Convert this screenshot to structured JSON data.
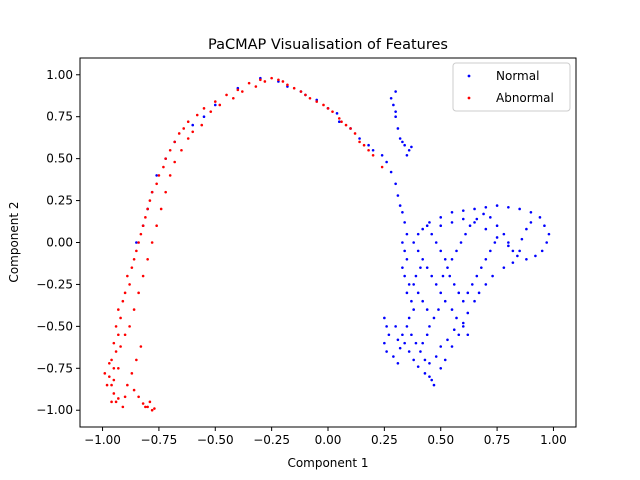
{
  "chart_data": {
    "type": "scatter",
    "title": "PaCMAP Visualisation of Features",
    "xlabel": "Component 1",
    "ylabel": "Component 2",
    "xlim": [
      -1.1,
      1.1
    ],
    "ylim": [
      -1.1,
      1.1
    ],
    "xticks": [
      -1.0,
      -0.75,
      -0.5,
      -0.25,
      0.0,
      0.25,
      0.5,
      0.75,
      1.0
    ],
    "xtick_labels": [
      "−1.00",
      "−0.75",
      "−0.50",
      "−0.25",
      "0.00",
      "0.25",
      "0.50",
      "0.75",
      "1.00"
    ],
    "yticks": [
      -1.0,
      -0.75,
      -0.5,
      -0.25,
      0.0,
      0.25,
      0.5,
      0.75,
      1.0
    ],
    "ytick_labels": [
      "−1.00",
      "−0.75",
      "−0.50",
      "−0.25",
      "0.00",
      "0.25",
      "0.50",
      "0.75",
      "1.00"
    ],
    "grid": false,
    "legend_position": "top-right",
    "series": [
      {
        "name": "Normal",
        "color": "#0000ff",
        "points": [
          [
            0.3,
            0.9
          ],
          [
            0.29,
            0.82
          ],
          [
            0.3,
            0.75
          ],
          [
            0.31,
            0.68
          ],
          [
            0.32,
            0.62
          ],
          [
            0.34,
            0.58
          ],
          [
            0.36,
            0.55
          ],
          [
            0.35,
            0.52
          ],
          [
            0.33,
            0.6
          ],
          [
            0.37,
            0.57
          ],
          [
            0.28,
            0.86
          ],
          [
            0.3,
            0.78
          ],
          [
            0.24,
            0.52
          ],
          [
            0.26,
            0.48
          ],
          [
            0.28,
            0.42
          ],
          [
            0.3,
            0.35
          ],
          [
            0.31,
            0.28
          ],
          [
            0.32,
            0.22
          ],
          [
            0.2,
            0.55
          ],
          [
            0.18,
            0.58
          ],
          [
            0.14,
            0.62
          ],
          [
            0.1,
            0.68
          ],
          [
            0.05,
            0.72
          ],
          [
            0.0,
            0.8
          ],
          [
            -0.05,
            0.85
          ],
          [
            -0.12,
            0.9
          ],
          [
            -0.18,
            0.93
          ],
          [
            -0.22,
            0.96
          ],
          [
            -0.3,
            0.98
          ],
          [
            -0.4,
            0.92
          ],
          [
            -0.5,
            0.82
          ],
          [
            -0.55,
            0.75
          ],
          [
            -0.6,
            0.7
          ],
          [
            -0.68,
            0.6
          ],
          [
            -0.72,
            0.5
          ],
          [
            -0.76,
            0.4
          ],
          [
            -0.78,
            0.3
          ],
          [
            -0.8,
            0.2
          ],
          [
            -0.82,
            0.1
          ],
          [
            -0.85,
            0.0
          ],
          [
            -0.1,
            0.88
          ],
          [
            0.04,
            0.77
          ],
          [
            0.33,
            0.18
          ],
          [
            0.34,
            0.12
          ],
          [
            0.35,
            0.05
          ],
          [
            0.33,
            0.0
          ],
          [
            0.34,
            -0.05
          ],
          [
            0.35,
            -0.1
          ],
          [
            0.33,
            -0.15
          ],
          [
            0.34,
            -0.2
          ],
          [
            0.36,
            -0.25
          ],
          [
            0.35,
            -0.3
          ],
          [
            0.37,
            -0.35
          ],
          [
            0.38,
            -0.4
          ],
          [
            0.36,
            -0.45
          ],
          [
            0.35,
            -0.5
          ],
          [
            0.33,
            -0.55
          ],
          [
            0.34,
            -0.6
          ],
          [
            0.36,
            -0.65
          ],
          [
            0.38,
            -0.7
          ],
          [
            0.4,
            -0.74
          ],
          [
            0.43,
            -0.78
          ],
          [
            0.46,
            -0.82
          ],
          [
            0.47,
            -0.85
          ],
          [
            0.45,
            -0.8
          ],
          [
            0.5,
            -0.75
          ],
          [
            0.52,
            -0.7
          ],
          [
            0.55,
            -0.62
          ],
          [
            0.58,
            -0.55
          ],
          [
            0.6,
            -0.48
          ],
          [
            0.62,
            -0.42
          ],
          [
            0.65,
            -0.35
          ],
          [
            0.67,
            -0.3
          ],
          [
            0.7,
            -0.25
          ],
          [
            0.73,
            -0.2
          ],
          [
            0.78,
            -0.15
          ],
          [
            0.82,
            -0.12
          ],
          [
            0.88,
            -0.1
          ],
          [
            0.92,
            -0.08
          ],
          [
            0.95,
            -0.05
          ],
          [
            0.97,
            0.0
          ],
          [
            0.98,
            0.05
          ],
          [
            0.96,
            0.1
          ],
          [
            0.94,
            0.15
          ],
          [
            0.9,
            0.18
          ],
          [
            0.85,
            0.2
          ],
          [
            0.8,
            0.21
          ],
          [
            0.75,
            0.22
          ],
          [
            0.7,
            0.21
          ],
          [
            0.65,
            0.2
          ],
          [
            0.6,
            0.19
          ],
          [
            0.55,
            0.18
          ],
          [
            0.5,
            0.15
          ],
          [
            0.45,
            0.12
          ],
          [
            0.42,
            0.08
          ],
          [
            0.4,
            0.05
          ],
          [
            0.38,
            0.0
          ],
          [
            0.4,
            -0.05
          ],
          [
            0.42,
            -0.1
          ],
          [
            0.44,
            -0.15
          ],
          [
            0.46,
            -0.2
          ],
          [
            0.48,
            -0.25
          ],
          [
            0.5,
            -0.3
          ],
          [
            0.52,
            -0.35
          ],
          [
            0.55,
            -0.4
          ],
          [
            0.57,
            -0.45
          ],
          [
            0.6,
            -0.5
          ],
          [
            0.62,
            -0.55
          ],
          [
            0.25,
            -0.45
          ],
          [
            0.26,
            -0.5
          ],
          [
            0.27,
            -0.55
          ],
          [
            0.25,
            -0.6
          ],
          [
            0.26,
            -0.65
          ],
          [
            0.29,
            -0.68
          ],
          [
            0.31,
            -0.72
          ],
          [
            0.42,
            -0.6
          ],
          [
            0.44,
            -0.55
          ],
          [
            0.45,
            -0.5
          ],
          [
            0.47,
            -0.45
          ],
          [
            0.49,
            -0.4
          ],
          [
            0.51,
            -0.2
          ],
          [
            0.53,
            -0.15
          ],
          [
            0.55,
            -0.1
          ],
          [
            0.57,
            -0.05
          ],
          [
            0.59,
            0.0
          ],
          [
            0.61,
            0.05
          ],
          [
            0.63,
            0.1
          ],
          [
            0.66,
            0.14
          ],
          [
            0.69,
            0.17
          ],
          [
            0.72,
            0.15
          ],
          [
            0.75,
            0.1
          ],
          [
            0.78,
            0.05
          ],
          [
            0.8,
            0.0
          ],
          [
            0.82,
            -0.05
          ],
          [
            0.84,
            -0.08
          ],
          [
            0.86,
            0.02
          ],
          [
            0.88,
            0.08
          ],
          [
            0.9,
            0.12
          ],
          [
            0.7,
            -0.1
          ],
          [
            0.72,
            -0.05
          ],
          [
            0.74,
            0.0
          ],
          [
            0.68,
            -0.15
          ],
          [
            0.66,
            -0.2
          ],
          [
            0.64,
            -0.25
          ],
          [
            0.62,
            -0.3
          ],
          [
            0.6,
            -0.35
          ],
          [
            0.58,
            -0.3
          ],
          [
            0.56,
            -0.25
          ],
          [
            0.54,
            -0.2
          ],
          [
            0.52,
            -0.1
          ],
          [
            0.5,
            -0.05
          ],
          [
            0.48,
            0.0
          ],
          [
            0.46,
            0.05
          ],
          [
            0.44,
            0.1
          ],
          [
            0.5,
            0.1
          ],
          [
            0.55,
            0.12
          ],
          [
            0.6,
            0.14
          ],
          [
            0.65,
            0.12
          ],
          [
            0.7,
            0.08
          ],
          [
            0.75,
            0.03
          ],
          [
            0.8,
            -0.02
          ],
          [
            0.85,
            -0.05
          ],
          [
            0.4,
            -0.3
          ],
          [
            0.42,
            -0.35
          ],
          [
            0.44,
            -0.4
          ],
          [
            0.38,
            -0.25
          ],
          [
            0.39,
            -0.2
          ],
          [
            0.41,
            -0.15
          ],
          [
            0.37,
            -0.55
          ],
          [
            0.39,
            -0.6
          ],
          [
            0.41,
            -0.65
          ],
          [
            0.43,
            -0.7
          ],
          [
            0.45,
            -0.72
          ],
          [
            0.48,
            -0.68
          ],
          [
            0.5,
            -0.62
          ],
          [
            0.53,
            -0.58
          ],
          [
            0.56,
            -0.52
          ],
          [
            0.3,
            -0.5
          ],
          [
            0.31,
            -0.58
          ],
          [
            0.32,
            -0.63
          ]
        ]
      },
      {
        "name": "Abnormal",
        "color": "#ff0000",
        "points": [
          [
            -0.78,
            -1.0
          ],
          [
            -0.8,
            -0.98
          ],
          [
            -0.82,
            -0.96
          ],
          [
            -0.84,
            -0.92
          ],
          [
            -0.86,
            -0.88
          ],
          [
            -0.9,
            -0.92
          ],
          [
            -0.94,
            -0.95
          ],
          [
            -0.95,
            -0.9
          ],
          [
            -0.96,
            -0.85
          ],
          [
            -0.97,
            -0.8
          ],
          [
            -0.95,
            -0.75
          ],
          [
            -0.96,
            -0.7
          ],
          [
            -0.94,
            -0.65
          ],
          [
            -0.95,
            -0.6
          ],
          [
            -0.93,
            -0.55
          ],
          [
            -0.94,
            -0.5
          ],
          [
            -0.92,
            -0.45
          ],
          [
            -0.93,
            -0.4
          ],
          [
            -0.91,
            -0.35
          ],
          [
            -0.9,
            -0.3
          ],
          [
            -0.88,
            -0.25
          ],
          [
            -0.89,
            -0.2
          ],
          [
            -0.87,
            -0.15
          ],
          [
            -0.86,
            -0.1
          ],
          [
            -0.85,
            -0.05
          ],
          [
            -0.84,
            0.0
          ],
          [
            -0.83,
            0.05
          ],
          [
            -0.82,
            0.1
          ],
          [
            -0.81,
            0.15
          ],
          [
            -0.8,
            0.2
          ],
          [
            -0.79,
            0.25
          ],
          [
            -0.78,
            0.3
          ],
          [
            -0.76,
            0.35
          ],
          [
            -0.75,
            0.4
          ],
          [
            -0.73,
            0.45
          ],
          [
            -0.72,
            0.5
          ],
          [
            -0.7,
            0.55
          ],
          [
            -0.68,
            0.6
          ],
          [
            -0.66,
            0.65
          ],
          [
            -0.64,
            0.68
          ],
          [
            -0.62,
            0.72
          ],
          [
            -0.58,
            0.76
          ],
          [
            -0.55,
            0.8
          ],
          [
            -0.5,
            0.84
          ],
          [
            -0.45,
            0.88
          ],
          [
            -0.4,
            0.91
          ],
          [
            -0.35,
            0.95
          ],
          [
            -0.3,
            0.97
          ],
          [
            -0.25,
            0.98
          ],
          [
            -0.2,
            0.96
          ],
          [
            -0.15,
            0.92
          ],
          [
            -0.1,
            0.88
          ],
          [
            -0.05,
            0.84
          ],
          [
            0.0,
            0.8
          ],
          [
            0.05,
            0.74
          ],
          [
            0.08,
            0.7
          ],
          [
            0.12,
            0.65
          ],
          [
            0.16,
            0.58
          ],
          [
            0.2,
            0.52
          ],
          [
            0.24,
            0.45
          ],
          [
            -0.98,
            -0.85
          ],
          [
            -0.99,
            -0.78
          ],
          [
            -0.97,
            -0.72
          ],
          [
            -0.92,
            -0.62
          ],
          [
            -0.9,
            -0.55
          ],
          [
            -0.88,
            -0.5
          ],
          [
            -0.86,
            -0.4
          ],
          [
            -0.84,
            -0.3
          ],
          [
            -0.82,
            -0.2
          ],
          [
            -0.8,
            -0.1
          ],
          [
            -0.78,
            0.0
          ],
          [
            -0.76,
            0.1
          ],
          [
            -0.74,
            0.2
          ],
          [
            -0.72,
            0.3
          ],
          [
            -0.7,
            0.4
          ],
          [
            -0.68,
            0.48
          ],
          [
            -0.65,
            0.55
          ],
          [
            -0.62,
            0.62
          ],
          [
            -0.6,
            0.66
          ],
          [
            -0.56,
            0.7
          ],
          [
            -0.52,
            0.78
          ],
          [
            -0.48,
            0.82
          ],
          [
            -0.42,
            0.86
          ],
          [
            -0.38,
            0.9
          ],
          [
            -0.32,
            0.93
          ],
          [
            -0.28,
            0.96
          ],
          [
            -0.22,
            0.97
          ],
          [
            -0.18,
            0.94
          ],
          [
            -0.12,
            0.9
          ],
          [
            -0.08,
            0.86
          ],
          [
            -0.02,
            0.82
          ],
          [
            0.02,
            0.78
          ],
          [
            0.06,
            0.72
          ],
          [
            0.1,
            0.68
          ],
          [
            0.14,
            0.6
          ],
          [
            0.18,
            0.55
          ],
          [
            -0.91,
            -0.98
          ],
          [
            -0.93,
            -0.93
          ],
          [
            -0.89,
            -0.85
          ],
          [
            -0.87,
            -0.78
          ],
          [
            -0.85,
            -0.7
          ],
          [
            -0.83,
            -0.62
          ],
          [
            -0.81,
            -0.98
          ],
          [
            -0.79,
            -0.95
          ],
          [
            -0.77,
            -0.99
          ],
          [
            -0.96,
            -0.95
          ],
          [
            -0.95,
            -0.82
          ],
          [
            -0.93,
            -0.75
          ]
        ]
      }
    ]
  }
}
